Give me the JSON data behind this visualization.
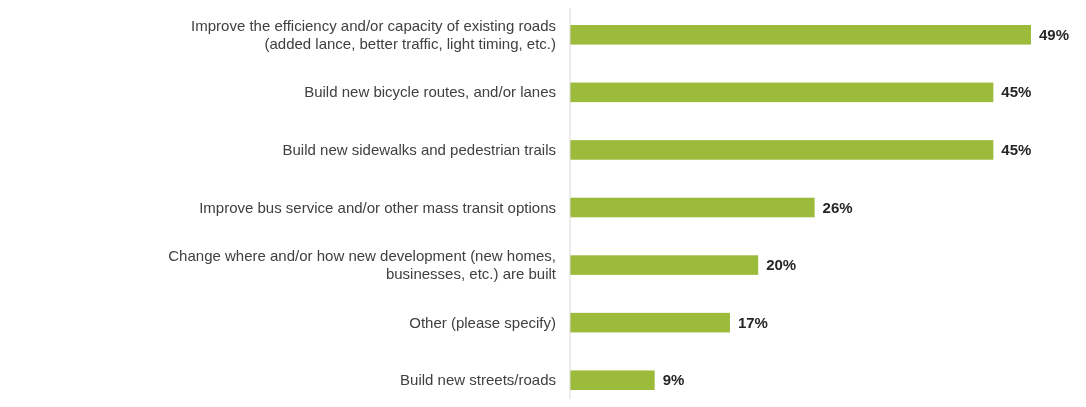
{
  "chart_data": {
    "type": "bar",
    "orientation": "horizontal",
    "categories": [
      "Improve the efficiency and/or capacity of existing roads (added lance, better traffic, light timing, etc.)",
      "Build new bicycle routes, and/or lanes",
      "Build new sidewalks and pedestrian trails",
      "Improve bus service and/or other mass transit options",
      "Change where and/or how new development (new homes, businesses, etc.) are built",
      "Other (please specify)",
      "Build new streets/roads"
    ],
    "values": [
      49,
      45,
      45,
      26,
      20,
      17,
      9
    ],
    "value_labels": [
      "49%",
      "45%",
      "45%",
      "26%",
      "20%",
      "17%",
      "9%"
    ],
    "color": "#9dbb3b"
  }
}
